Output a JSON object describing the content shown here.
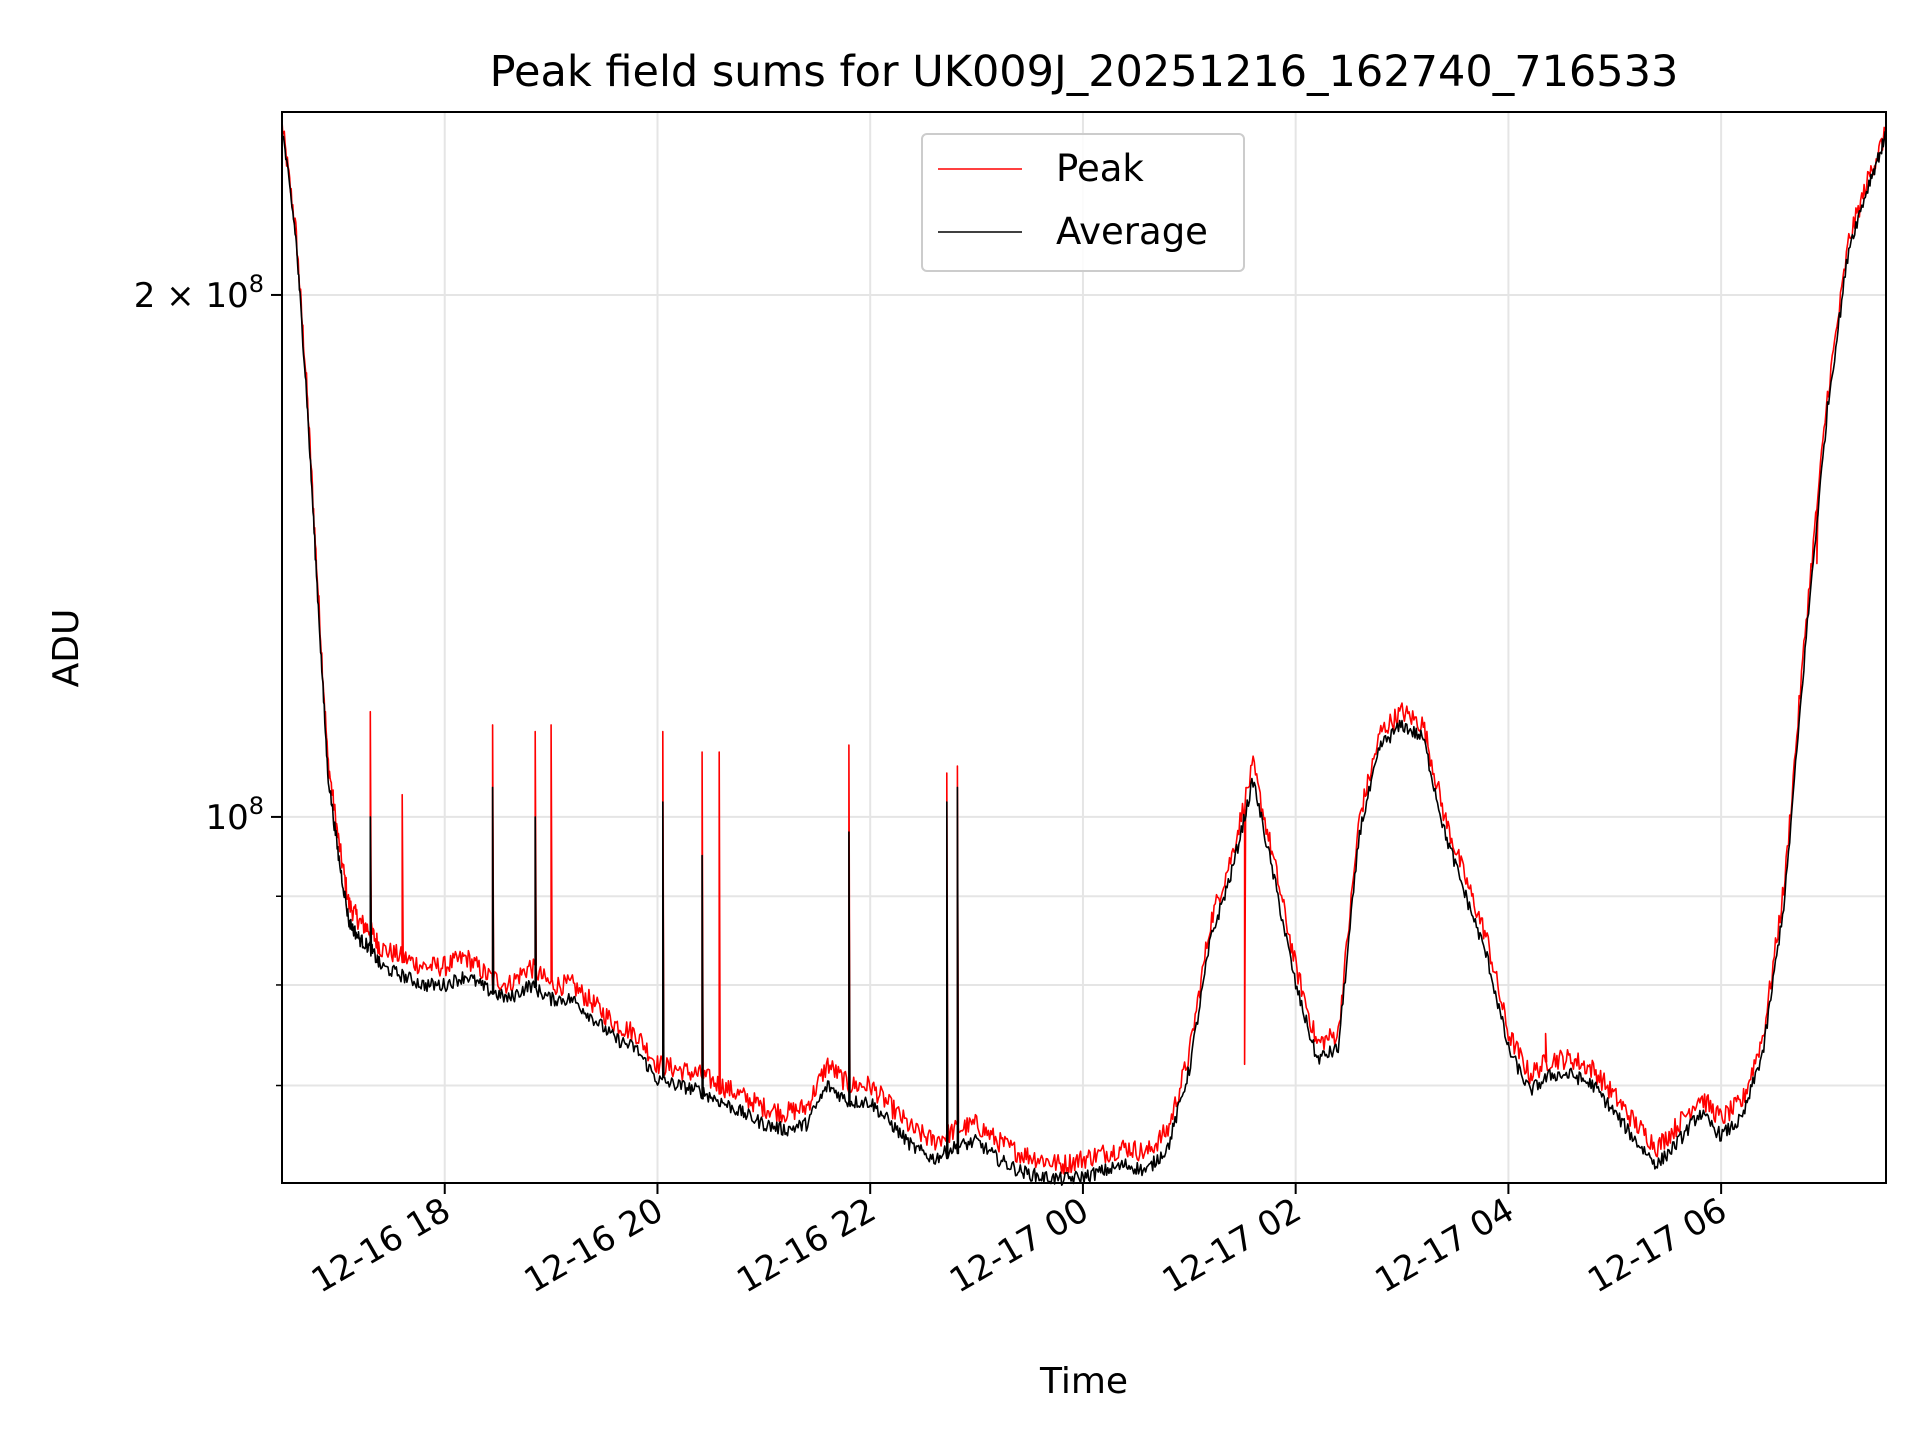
{
  "chart_data": {
    "type": "line",
    "title": "Peak field sums for UK009J_20251216_162740_716533",
    "xlabel": "Time",
    "ylabel": "ADU",
    "yscale": "log",
    "grid": true,
    "legend_position": "top-center",
    "x_unit": "hours since 2025-12-16 00:00",
    "xlim": [
      16.47,
      31.55
    ],
    "ylim": [
      61500000,
      255000000
    ],
    "x_ticks": [
      {
        "value": 18,
        "label": "12-16 18"
      },
      {
        "value": 20,
        "label": "12-16 20"
      },
      {
        "value": 22,
        "label": "12-16 22"
      },
      {
        "value": 24,
        "label": "12-17 00"
      },
      {
        "value": 26,
        "label": "12-17 02"
      },
      {
        "value": 28,
        "label": "12-17 04"
      },
      {
        "value": 30,
        "label": "12-17 06"
      }
    ],
    "y_major_ticks": [
      {
        "value": 100000000,
        "base": "10",
        "exp": "8",
        "prefix": ""
      },
      {
        "value": 200000000,
        "base": "10",
        "exp": "8",
        "prefix": "2 × "
      }
    ],
    "y_minor_ticks": [
      70000000,
      80000000,
      90000000
    ],
    "series": [
      {
        "name": "Peak",
        "color": "#ff0000",
        "x": [
          16.47,
          16.6,
          16.7,
          16.8,
          16.9,
          17.0,
          17.1,
          17.2,
          17.3,
          17.4,
          17.6,
          17.8,
          18.0,
          18.2,
          18.4,
          18.6,
          18.8,
          19.0,
          19.2,
          19.4,
          19.6,
          19.8,
          20.0,
          20.2,
          20.4,
          20.6,
          20.8,
          21.0,
          21.2,
          21.4,
          21.6,
          21.8,
          22.0,
          22.2,
          22.4,
          22.6,
          22.8,
          23.0,
          23.2,
          23.4,
          23.6,
          23.8,
          24.0,
          24.2,
          24.4,
          24.6,
          24.8,
          25.0,
          25.2,
          25.4,
          25.6,
          25.8,
          26.0,
          26.2,
          26.4,
          26.6,
          26.8,
          27.0,
          27.2,
          27.4,
          27.6,
          27.8,
          28.0,
          28.2,
          28.4,
          28.6,
          28.8,
          29.0,
          29.2,
          29.4,
          29.6,
          29.8,
          30.0,
          30.2,
          30.4,
          30.6,
          30.8,
          31.0,
          31.2,
          31.4,
          31.55
        ],
        "y": [
          251000000,
          218000000,
          178000000,
          138000000,
          108000000,
          97000000,
          89000000,
          87000000,
          86000000,
          84000000,
          83000000,
          82000000,
          82000000,
          83000000,
          81000000,
          80000000,
          82000000,
          80000000,
          80000000,
          78000000,
          76000000,
          75000000,
          72000000,
          71500000,
          71000000,
          70000000,
          69000000,
          68000000,
          67500000,
          68000000,
          72000000,
          70000000,
          70000000,
          68000000,
          66000000,
          65000000,
          66000000,
          66500000,
          65000000,
          64000000,
          63500000,
          63000000,
          63500000,
          64000000,
          64500000,
          64000000,
          66000000,
          73000000,
          87000000,
          95000000,
          107000000,
          94000000,
          82000000,
          74000000,
          75000000,
          100000000,
          112000000,
          115000000,
          113000000,
          100000000,
          92000000,
          85000000,
          75000000,
          71000000,
          72500000,
          72500000,
          71500000,
          69000000,
          66500000,
          64500000,
          66500000,
          69000000,
          67000000,
          68500000,
          75000000,
          92000000,
          130000000,
          175000000,
          215000000,
          235000000,
          248000000
        ],
        "spikes": [
          {
            "x": 17.3,
            "y": 115000000
          },
          {
            "x": 17.6,
            "y": 103000000
          },
          {
            "x": 18.45,
            "y": 113000000
          },
          {
            "x": 18.85,
            "y": 112000000
          },
          {
            "x": 19.0,
            "y": 113000000
          },
          {
            "x": 20.05,
            "y": 112000000
          },
          {
            "x": 20.42,
            "y": 109000000
          },
          {
            "x": 20.58,
            "y": 109000000
          },
          {
            "x": 21.8,
            "y": 110000000
          },
          {
            "x": 22.72,
            "y": 106000000
          },
          {
            "x": 22.82,
            "y": 107000000
          },
          {
            "x": 25.52,
            "y": 72000000
          },
          {
            "x": 28.35,
            "y": 75000000
          },
          {
            "x": 30.9,
            "y": 140000000
          }
        ]
      },
      {
        "name": "Average",
        "color": "#000000",
        "x": [
          16.47,
          16.6,
          16.7,
          16.8,
          16.9,
          17.0,
          17.1,
          17.2,
          17.3,
          17.4,
          17.6,
          17.8,
          18.0,
          18.2,
          18.4,
          18.6,
          18.8,
          19.0,
          19.2,
          19.4,
          19.6,
          19.8,
          20.0,
          20.2,
          20.4,
          20.6,
          20.8,
          21.0,
          21.2,
          21.4,
          21.6,
          21.8,
          22.0,
          22.2,
          22.4,
          22.6,
          22.8,
          23.0,
          23.2,
          23.4,
          23.6,
          23.8,
          24.0,
          24.2,
          24.4,
          24.6,
          24.8,
          25.0,
          25.2,
          25.4,
          25.6,
          25.8,
          26.0,
          26.2,
          26.4,
          26.6,
          26.8,
          27.0,
          27.2,
          27.4,
          27.6,
          27.8,
          28.0,
          28.2,
          28.4,
          28.6,
          28.8,
          29.0,
          29.2,
          29.4,
          29.6,
          29.8,
          30.0,
          30.2,
          30.4,
          30.6,
          30.8,
          31.0,
          31.2,
          31.4,
          31.55
        ],
        "y": [
          250000000,
          216000000,
          176000000,
          136000000,
          106000000,
          95000000,
          87000000,
          85000000,
          84000000,
          82000000,
          81000000,
          80000000,
          80000000,
          81000000,
          79500000,
          78500000,
          80000000,
          78500000,
          78500000,
          76500000,
          74500000,
          73500000,
          70500000,
          70000000,
          69500000,
          68500000,
          67500000,
          66500000,
          66000000,
          66500000,
          70000000,
          68500000,
          68500000,
          66500000,
          64500000,
          63500000,
          64500000,
          65000000,
          63500000,
          62500000,
          62000000,
          61800000,
          62000000,
          62500000,
          63000000,
          62500000,
          64500000,
          71500000,
          85000000,
          93000000,
          105000000,
          92000000,
          80000000,
          72500000,
          73500000,
          98000000,
          110000000,
          113000000,
          111000000,
          98000000,
          90000000,
          83000000,
          73500000,
          69500000,
          71000000,
          71000000,
          70000000,
          67500000,
          65000000,
          63000000,
          65000000,
          67500000,
          65500000,
          67000000,
          73500000,
          90000000,
          127000000,
          172000000,
          213000000,
          233000000,
          247000000
        ],
        "spikes": [
          {
            "x": 17.3,
            "y": 100000000
          },
          {
            "x": 18.45,
            "y": 104000000
          },
          {
            "x": 18.85,
            "y": 100000000
          },
          {
            "x": 20.05,
            "y": 102000000
          },
          {
            "x": 20.42,
            "y": 95000000
          },
          {
            "x": 21.8,
            "y": 98000000
          },
          {
            "x": 22.72,
            "y": 102000000
          },
          {
            "x": 22.82,
            "y": 104000000
          }
        ]
      }
    ]
  }
}
